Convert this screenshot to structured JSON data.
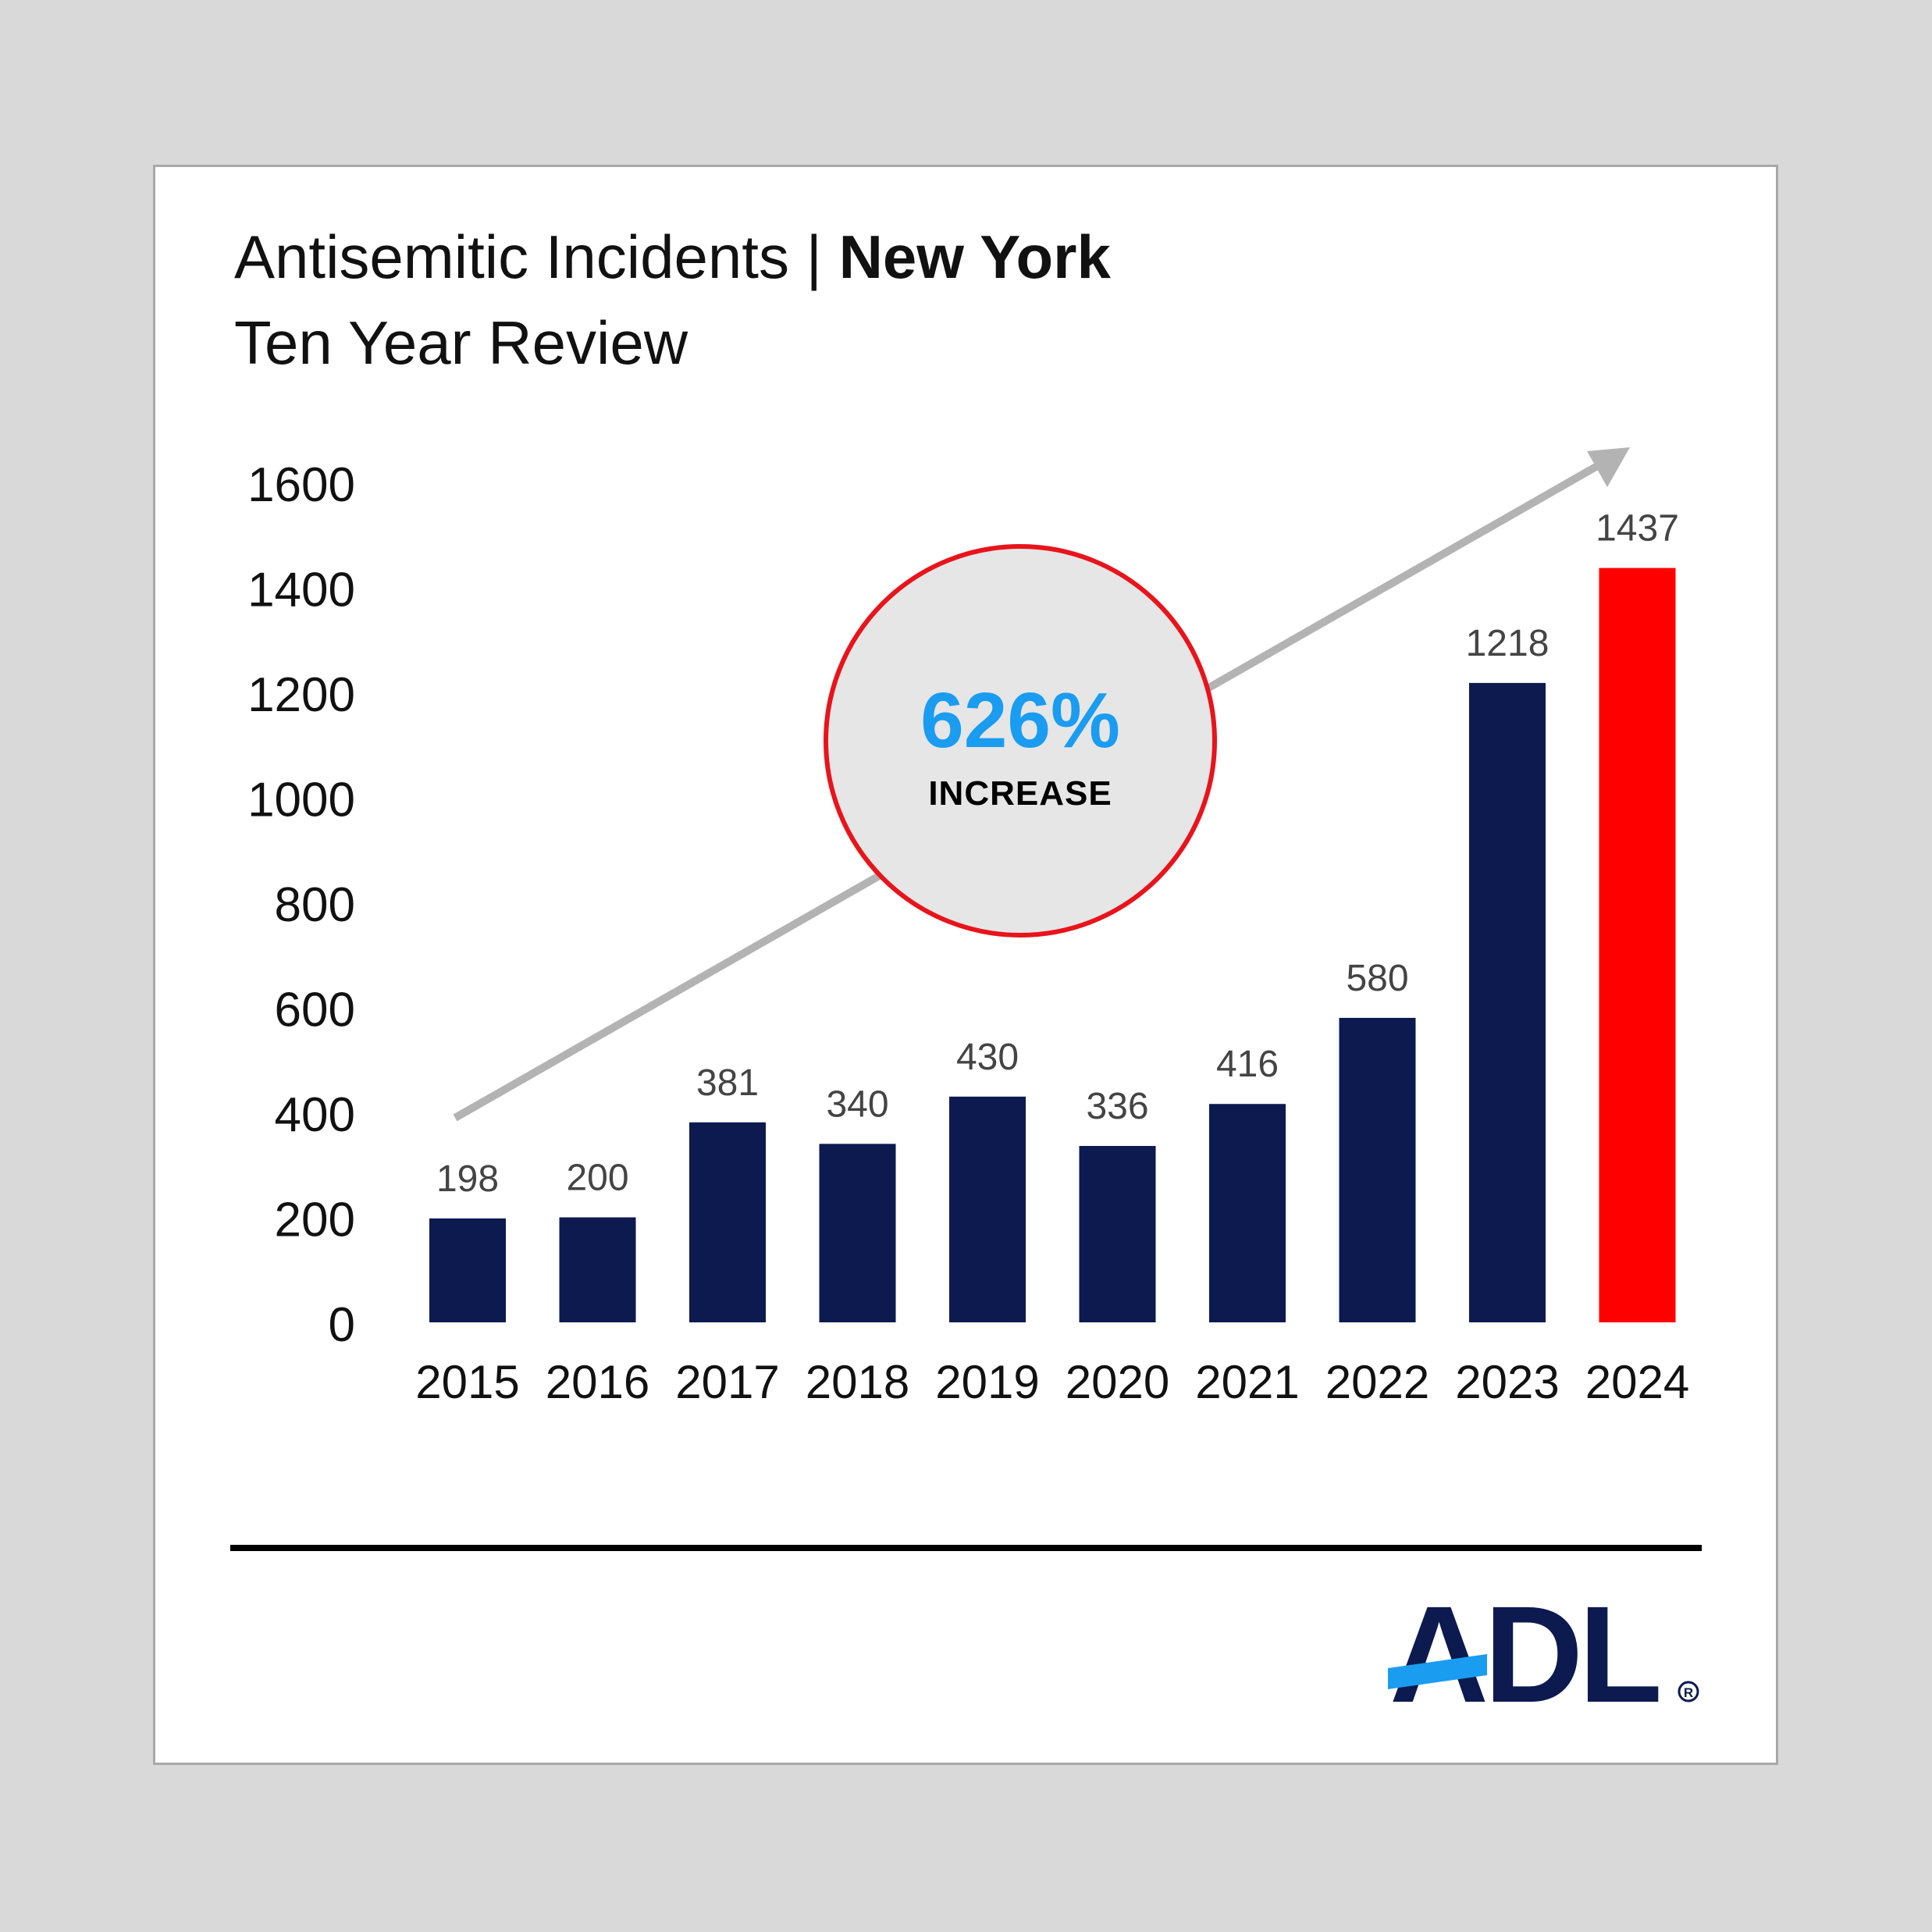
{
  "title": {
    "prefix": "Antisemitic Incidents | ",
    "location": "New York"
  },
  "subtitle": "Ten Year Review",
  "callout": {
    "value": "626%",
    "label": "INCREASE"
  },
  "logo": {
    "text": "ADL",
    "registered": "®"
  },
  "colors": {
    "bar": "#0d1a4f",
    "highlight_bar": "#ff0000",
    "trend_arrow": "#b3b3b3",
    "callout_ring": "#e8141c",
    "callout_fill": "#e6e6e6",
    "callout_value": "#1a9cf0",
    "logo_text": "#0d1a4f",
    "logo_accent": "#1a9cf0"
  },
  "chart_data": {
    "type": "bar",
    "categories": [
      "2015",
      "2016",
      "2017",
      "2018",
      "2019",
      "2020",
      "2021",
      "2022",
      "2023",
      "2024"
    ],
    "values": [
      198,
      200,
      381,
      340,
      430,
      336,
      416,
      580,
      1218,
      1437
    ],
    "highlight_category": "2024",
    "yticks": [
      0,
      200,
      400,
      600,
      800,
      1000,
      1200,
      1400,
      1600
    ],
    "ylim": [
      0,
      1600
    ],
    "grid": false,
    "legend": "none",
    "data_labels": true
  }
}
